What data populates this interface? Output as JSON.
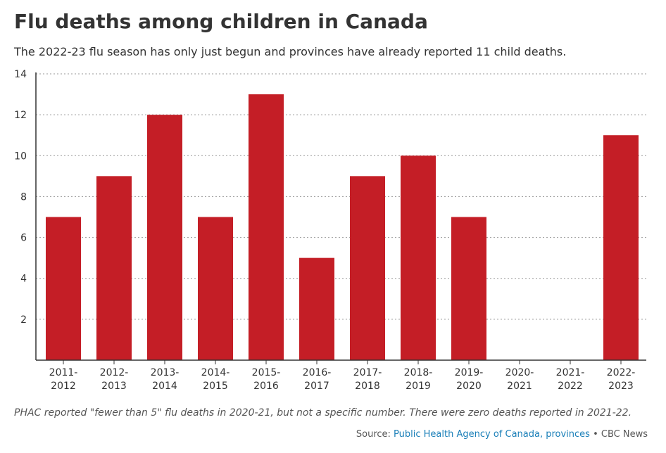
{
  "title": "Flu deaths among children in Canada",
  "subtitle": "The 2022-23 flu season has only just begun and provinces have already reported 11 child deaths.",
  "footnote": "PHAC reported \"fewer than 5\" flu deaths in 2020-21, but not a specific number. There were zero deaths reported in 2021-22.",
  "source": {
    "prefix": "Source: ",
    "link_text": "Public Health Agency of Canada, provinces",
    "suffix": " • CBC News"
  },
  "colors": {
    "bar": "#c41e26",
    "grid": "#999999",
    "axis": "#333333",
    "link": "#1a7fb8"
  },
  "chart_data": {
    "type": "bar",
    "categories": [
      [
        "2011-",
        "2012"
      ],
      [
        "2012-",
        "2013"
      ],
      [
        "2013-",
        "2014"
      ],
      [
        "2014-",
        "2015"
      ],
      [
        "2015-",
        "2016"
      ],
      [
        "2016-",
        "2017"
      ],
      [
        "2017-",
        "2018"
      ],
      [
        "2018-",
        "2019"
      ],
      [
        "2019-",
        "2020"
      ],
      [
        "2020-",
        "2021"
      ],
      [
        "2021-",
        "2022"
      ],
      [
        "2022-",
        "2023"
      ]
    ],
    "values": [
      7,
      9,
      12,
      7,
      13,
      5,
      9,
      10,
      7,
      null,
      null,
      11
    ],
    "ylim": [
      0,
      14
    ],
    "yticks": [
      2,
      4,
      6,
      8,
      10,
      12,
      14
    ],
    "grid": "dotted horizontal",
    "xlabel": "",
    "ylabel": ""
  }
}
